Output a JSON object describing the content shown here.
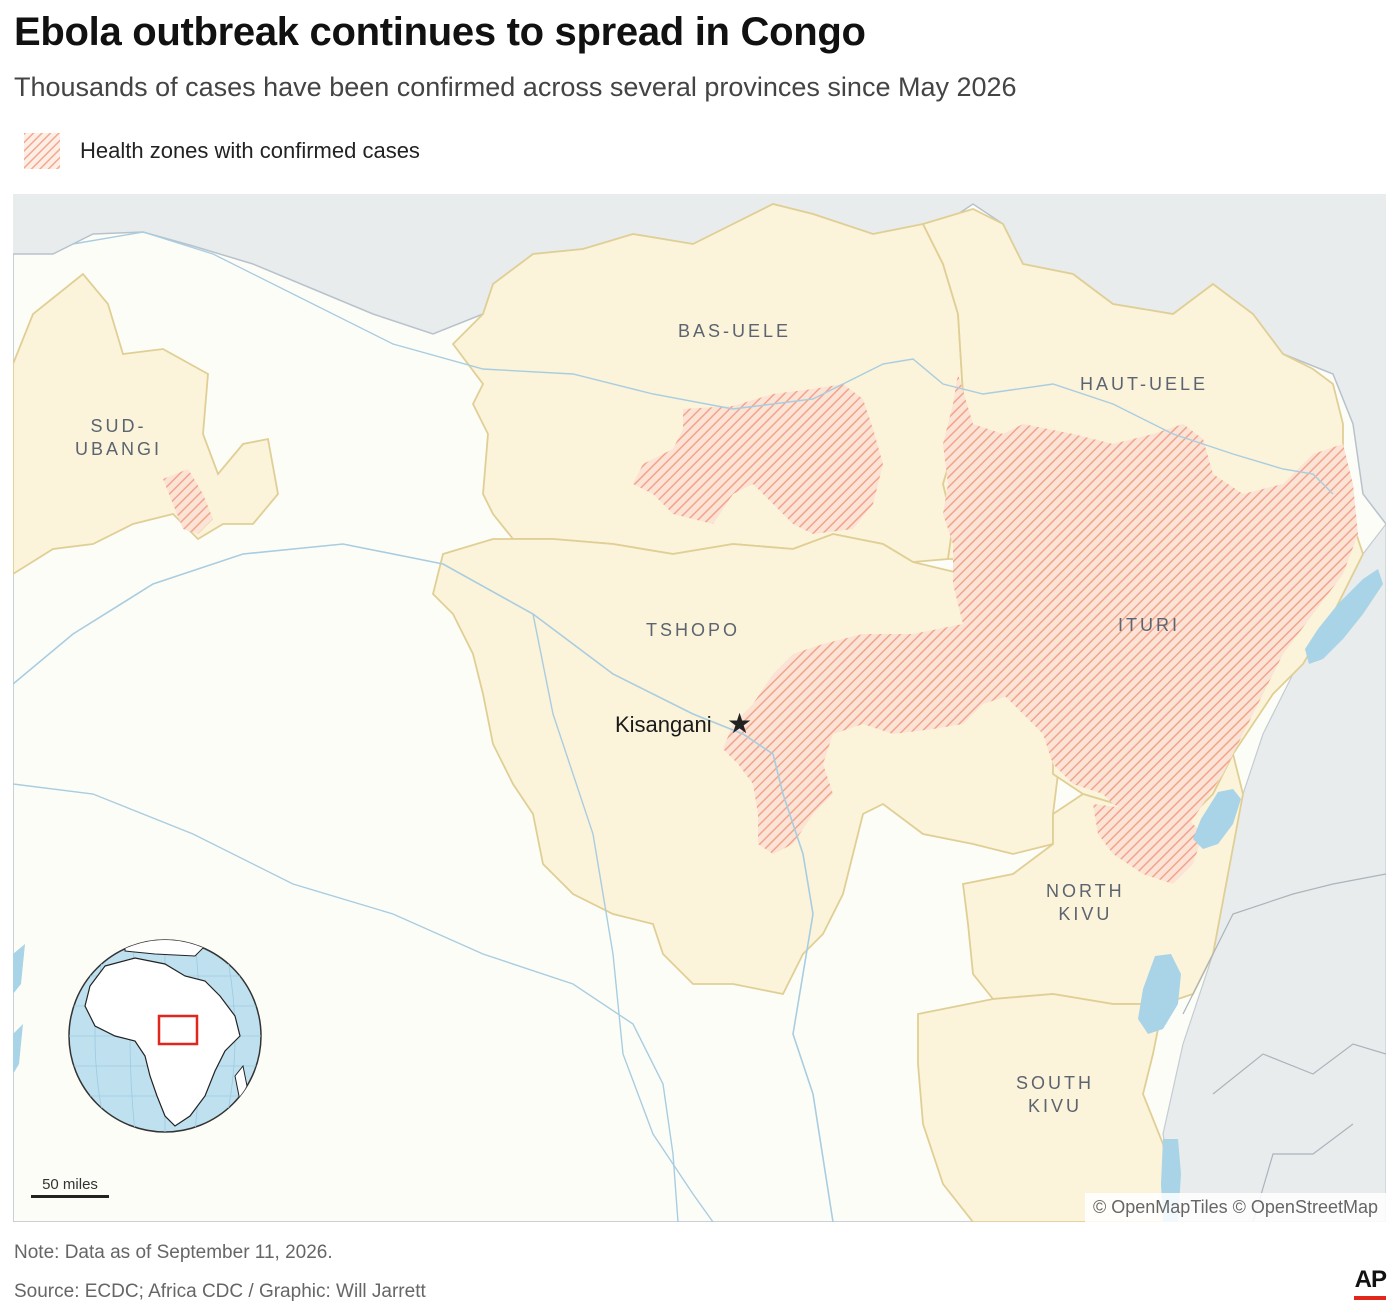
{
  "title": "Ebola outbreak continues to spread in Congo",
  "subtitle": "Thousands of cases have been confirmed across several provinces since May 2026",
  "legend": {
    "label": "Health zones with confirmed cases",
    "color": "#f4a78e"
  },
  "map": {
    "provinces": [
      {
        "id": "bas-uele",
        "name": "BAS-UELE"
      },
      {
        "id": "haut-uele",
        "name": "HAUT-UELE"
      },
      {
        "id": "sud-ubangi",
        "name": "SUD-\nUBANGI"
      },
      {
        "id": "tshopo",
        "name": "TSHOPO"
      },
      {
        "id": "ituri",
        "name": "ITURI"
      },
      {
        "id": "north-kivu",
        "name": "NORTH\nKIVU"
      },
      {
        "id": "south-kivu",
        "name": "SOUTH\nKIVU"
      }
    ],
    "city": {
      "name": "Kisangani",
      "marker": "star-icon"
    },
    "scale_label": "50 miles",
    "attribution": "© OpenMapTiles © OpenStreetMap",
    "colors": {
      "province_fill": "#fbf3da",
      "province_border": "#e0cf95",
      "outside_land": "#fdfdf8",
      "neighbors": "#e9ecec",
      "water": "#a9d3e6",
      "river": "#9fc4dc",
      "outbreak": "#f4a78e",
      "globe_ocean": "#bfe0ef",
      "locator_box": "#e1261c"
    }
  },
  "note": "Note: Data as of September 11, 2026.",
  "source": "Source: ECDC; Africa CDC / Graphic: Will Jarrett",
  "brand": "AP"
}
